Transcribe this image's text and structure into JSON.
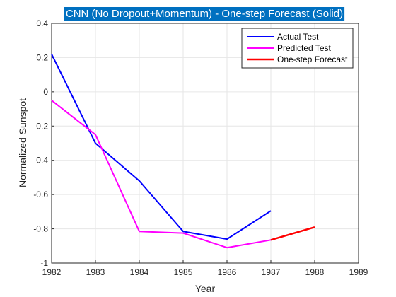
{
  "chart_data": {
    "type": "line",
    "title": "CNN (No Dropout+Momentum) - One-step Forecast (Solid)",
    "title_bg_color": "#0070c0",
    "xlabel": "Year",
    "ylabel": "Normalized Sunspot",
    "xlim": [
      1982,
      1989
    ],
    "ylim": [
      -1,
      0.4
    ],
    "xticks": [
      1982,
      1983,
      1984,
      1985,
      1986,
      1987,
      1988,
      1989
    ],
    "yticks": [
      -1,
      -0.8,
      -0.6,
      -0.4,
      -0.2,
      0,
      0.2,
      0.4
    ],
    "ytick_labels": [
      "-1",
      "-0.8",
      "-0.6",
      "-0.4",
      "-0.2",
      "0",
      "0.2",
      "0.4"
    ],
    "grid": true,
    "legend_position": "top-right",
    "series": [
      {
        "name": "Actual Test",
        "color": "#0000ff",
        "x": [
          1982,
          1983,
          1984,
          1985,
          1986,
          1987
        ],
        "y": [
          0.22,
          -0.3,
          -0.52,
          -0.815,
          -0.86,
          -0.695
        ]
      },
      {
        "name": "Predicted Test",
        "color": "#ff00ff",
        "x": [
          1982,
          1983,
          1984,
          1985,
          1986,
          1987
        ],
        "y": [
          -0.05,
          -0.25,
          -0.815,
          -0.825,
          -0.91,
          -0.865
        ]
      },
      {
        "name": "One-step Forecast",
        "color": "#ff0000",
        "x": [
          1987,
          1988
        ],
        "y": [
          -0.865,
          -0.79
        ]
      }
    ]
  }
}
